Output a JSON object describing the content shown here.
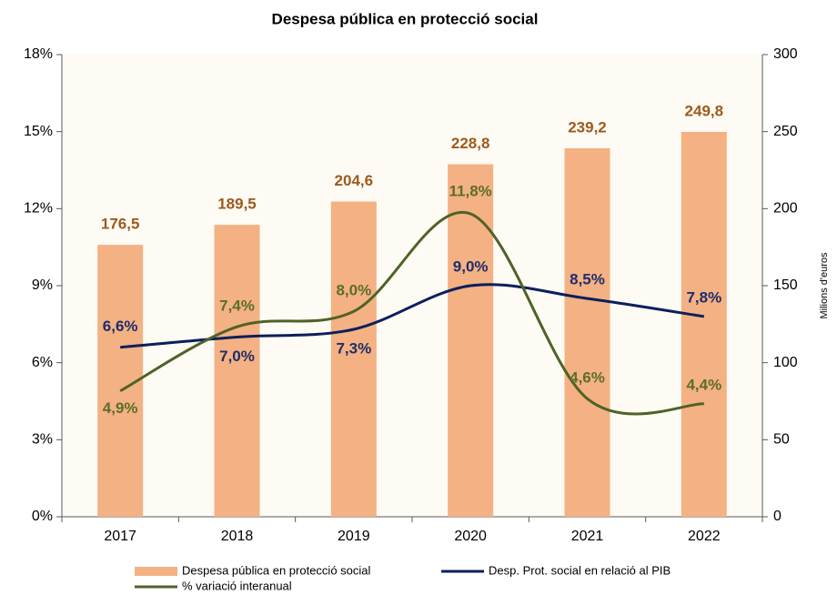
{
  "chart_data": {
    "type": "bar",
    "title": "Despesa pública en protecció social",
    "categories": [
      "2017",
      "2018",
      "2019",
      "2020",
      "2021",
      "2022"
    ],
    "series": [
      {
        "name": "Despesa pública en protecció social",
        "type": "bar",
        "axis": "y2",
        "color": "#f4b183",
        "label_color": "#9c5a1e",
        "values": [
          176.5,
          189.5,
          204.6,
          228.8,
          239.2,
          249.8
        ],
        "value_labels": [
          "176,5",
          "189,5",
          "204,6",
          "228,8",
          "239,2",
          "249,8"
        ]
      },
      {
        "name": "Desp. Prot. social en relació al PIB",
        "type": "line",
        "color": "#0b1f5c",
        "label_color": "#1f2d6b",
        "values": [
          6.6,
          7.0,
          7.3,
          9.0,
          8.5,
          7.8
        ],
        "value_labels": [
          "6,6%",
          "7,0%",
          "7,3%",
          "9,0%",
          "8,5%",
          "7,8%"
        ]
      },
      {
        "name": "% variació interanual",
        "type": "line",
        "color": "#4f6228",
        "label_color": "#5b6e2a",
        "values": [
          4.9,
          7.4,
          8.0,
          11.8,
          4.6,
          4.4
        ],
        "value_labels": [
          "4,9%",
          "7,4%",
          "8,0%",
          "11,8%",
          "4,6%",
          "4,4%"
        ]
      }
    ],
    "ylim": [
      0,
      18
    ],
    "yticks": [
      {
        "value": 0,
        "label": "0%"
      },
      {
        "value": 3,
        "label": "3%"
      },
      {
        "value": 6,
        "label": "6%"
      },
      {
        "value": 9,
        "label": "9%"
      },
      {
        "value": 12,
        "label": "12%"
      },
      {
        "value": 15,
        "label": "15%"
      },
      {
        "value": 18,
        "label": "18%"
      }
    ],
    "y2label": "Milions d'euros",
    "y2lim": [
      0,
      300
    ],
    "y2ticks": [
      0,
      50,
      100,
      150,
      200,
      250,
      300
    ],
    "smooth": true,
    "legend": "bottom"
  }
}
